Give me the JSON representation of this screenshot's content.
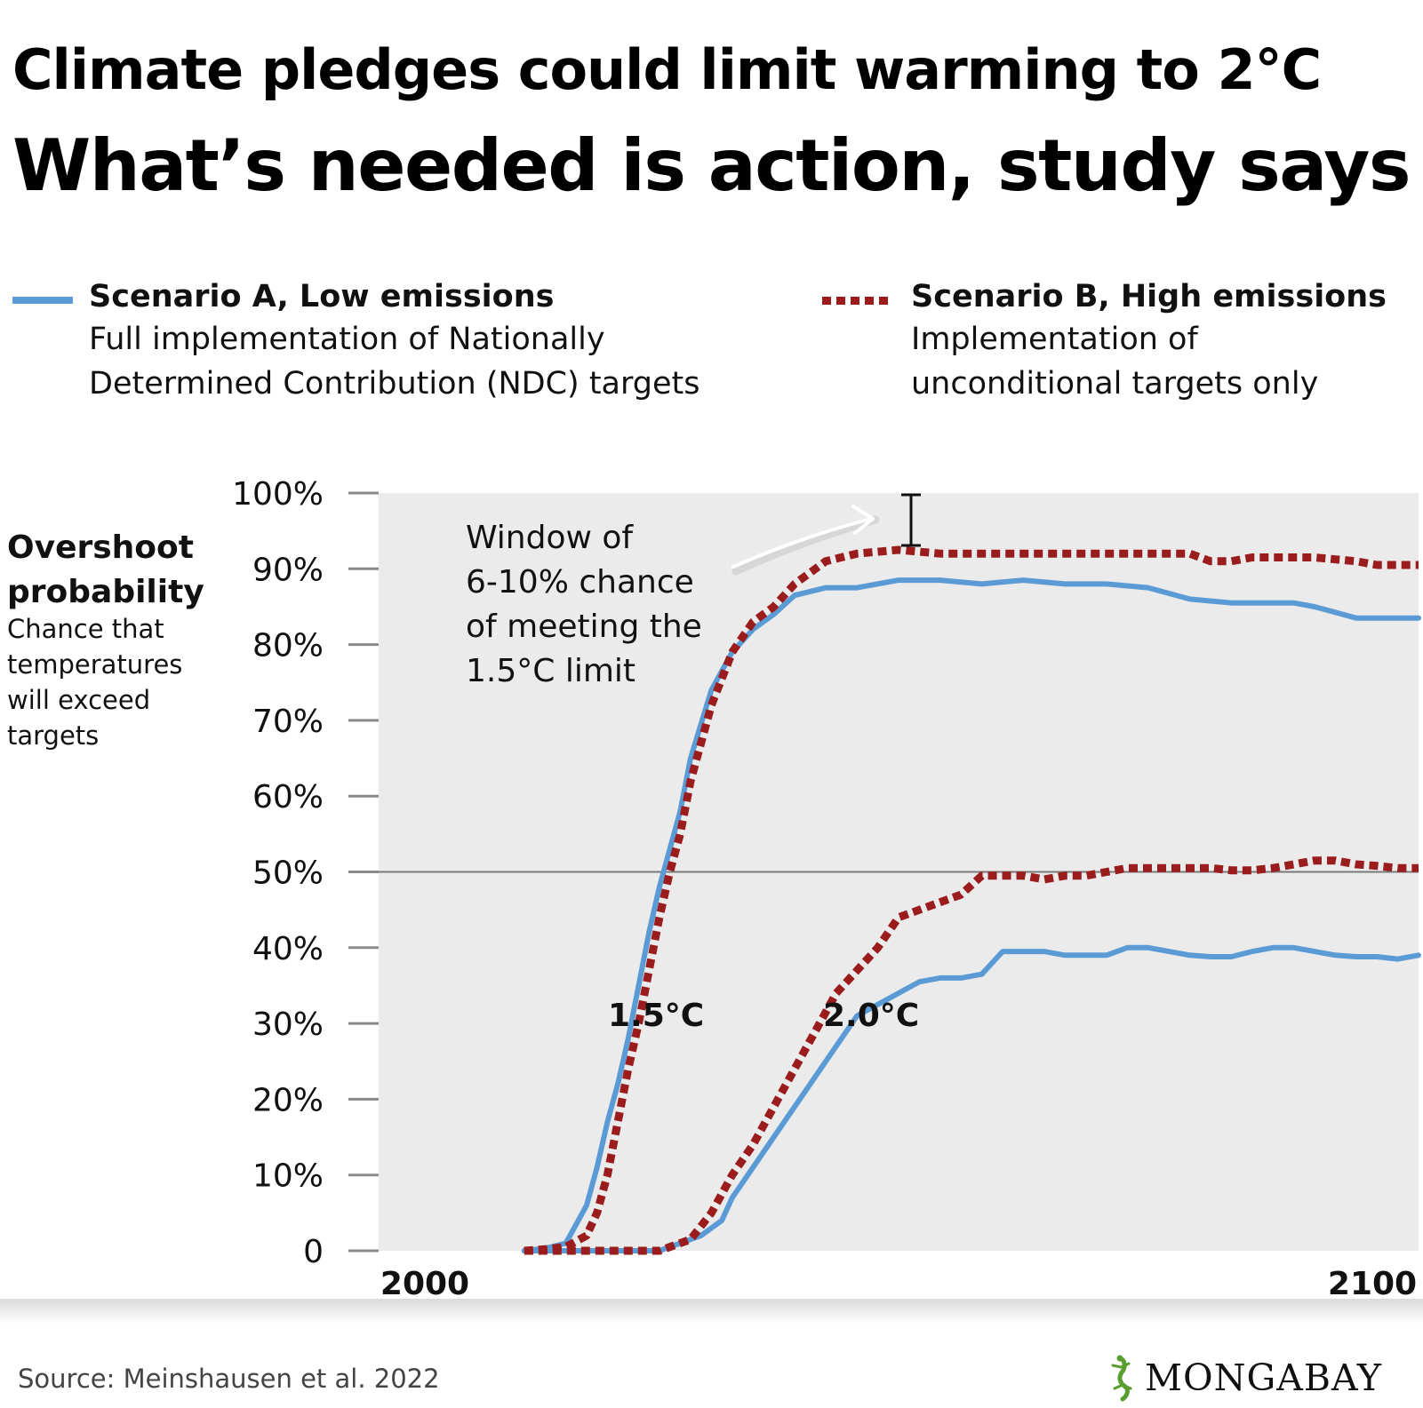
{
  "title_line1": "Climate pledges could limit warming to 2°C",
  "title_line2": "What’s needed is action, study says",
  "legend": {
    "a": {
      "title": "Scenario A, Low emissions",
      "desc1": "Full implementation of Nationally",
      "desc2": "Determined Contribution (NDC) targets",
      "color": "#5b9bd5"
    },
    "b": {
      "title": "Scenario B, High emissions",
      "desc1": "Implementation of",
      "desc2": "unconditional targets only",
      "color": "#9b1c1c"
    }
  },
  "ylabel": {
    "title1": "Overshoot",
    "title2": "probability",
    "sub1": "Chance that",
    "sub2": "temperatures",
    "sub3": "will exceed",
    "sub4": "targets"
  },
  "annotations": {
    "window": [
      "Window of",
      "6-10% chance",
      "of meeting the",
      "1.5°C limit"
    ],
    "label_15": "1.5°C",
    "label_20": "2.0°C"
  },
  "source": "Source: Meinshausen et al. 2022",
  "logo": "MONGABAY",
  "chart_data": {
    "type": "line",
    "xlabel": "",
    "ylabel": "",
    "xlim": [
      2000,
      2100
    ],
    "ylim": [
      0,
      100
    ],
    "x_ticks": [
      "2000",
      "2100"
    ],
    "y_ticks": [
      "0",
      "10%",
      "20%",
      "30%",
      "40%",
      "50%",
      "60%",
      "70%",
      "80%",
      "90%",
      "100%"
    ],
    "reference_line": 50,
    "series": [
      {
        "name": "Scenario A, Low emissions",
        "threshold": "1.5°C",
        "color": "#5b9bd5",
        "style": "solid",
        "x": [
          2014,
          2016,
          2018,
          2020,
          2021,
          2022,
          2023,
          2024,
          2025,
          2026,
          2027,
          2028,
          2029,
          2030,
          2032,
          2034,
          2036,
          2038,
          2040,
          2043,
          2046,
          2050,
          2054,
          2058,
          2062,
          2066,
          2070,
          2074,
          2078,
          2082,
          2086,
          2088,
          2090,
          2094,
          2096,
          2098,
          2100
        ],
        "y": [
          0,
          0.3,
          1,
          6,
          11,
          17,
          22,
          28,
          35,
          42,
          48,
          53,
          58,
          65,
          74,
          79,
          82,
          84,
          86.5,
          87.5,
          87.5,
          88.5,
          88.5,
          88,
          88.5,
          88,
          88,
          87.5,
          86,
          85.5,
          85.5,
          85.5,
          85,
          83.5,
          83.5,
          83.5,
          83.5
        ]
      },
      {
        "name": "Scenario B, High emissions",
        "threshold": "1.5°C",
        "color": "#9b1c1c",
        "style": "dotted",
        "x": [
          2014,
          2016,
          2018,
          2020,
          2021,
          2022,
          2023,
          2024,
          2025,
          2026,
          2027,
          2028,
          2029,
          2030,
          2032,
          2034,
          2036,
          2038,
          2040,
          2043,
          2046,
          2050,
          2054,
          2058,
          2062,
          2066,
          2070,
          2074,
          2078,
          2080,
          2082,
          2084,
          2086,
          2088,
          2090,
          2094,
          2096,
          2098,
          2100
        ],
        "y": [
          0,
          0.2,
          0.5,
          2,
          5,
          10,
          17,
          24,
          30,
          37,
          44,
          50,
          55,
          62,
          72,
          79,
          83,
          85,
          88,
          91,
          92,
          92.5,
          92,
          92,
          92,
          92,
          92,
          92,
          92,
          91,
          91,
          91.5,
          91.5,
          91.5,
          91.5,
          91,
          90.5,
          90.5,
          90.5
        ]
      },
      {
        "name": "Scenario A, Low emissions",
        "threshold": "2.0°C",
        "color": "#5b9bd5",
        "style": "solid",
        "x": [
          2014,
          2020,
          2027,
          2031,
          2033,
          2034,
          2036,
          2038,
          2040,
          2042,
          2044,
          2046,
          2048,
          2050,
          2052,
          2054,
          2056,
          2058,
          2060,
          2062,
          2064,
          2066,
          2068,
          2070,
          2072,
          2074,
          2076,
          2078,
          2080,
          2082,
          2084,
          2086,
          2088,
          2090,
          2092,
          2094,
          2096,
          2098,
          2100
        ],
        "y": [
          0,
          0,
          0,
          2,
          4,
          7,
          11,
          15,
          19,
          23,
          27,
          31,
          32.5,
          34,
          35.5,
          36,
          36,
          36.5,
          39.5,
          39.5,
          39.5,
          39,
          39,
          39,
          40,
          40,
          39.5,
          39,
          38.8,
          38.8,
          39.5,
          40,
          40,
          39.5,
          39,
          38.8,
          38.8,
          38.5,
          39
        ]
      },
      {
        "name": "Scenario B, High emissions",
        "threshold": "2.0°C",
        "color": "#9b1c1c",
        "style": "dotted",
        "x": [
          2014,
          2020,
          2027,
          2030,
          2032,
          2034,
          2036,
          2038,
          2040,
          2042,
          2044,
          2046,
          2048,
          2050,
          2052,
          2054,
          2056,
          2058,
          2060,
          2062,
          2064,
          2066,
          2068,
          2070,
          2072,
          2074,
          2076,
          2078,
          2080,
          2082,
          2084,
          2086,
          2088,
          2090,
          2092,
          2094,
          2096,
          2098,
          2100
        ],
        "y": [
          0,
          0,
          0,
          1.5,
          5,
          10,
          14,
          19,
          24,
          29,
          34,
          37,
          40,
          44,
          45,
          46,
          47,
          49.5,
          49.5,
          49.5,
          49,
          49.5,
          49.5,
          50,
          50.5,
          50.5,
          50.5,
          50.5,
          50.5,
          50.2,
          50.2,
          50.5,
          51,
          51.5,
          51.5,
          51,
          50.8,
          50.5,
          50.5
        ]
      }
    ]
  }
}
